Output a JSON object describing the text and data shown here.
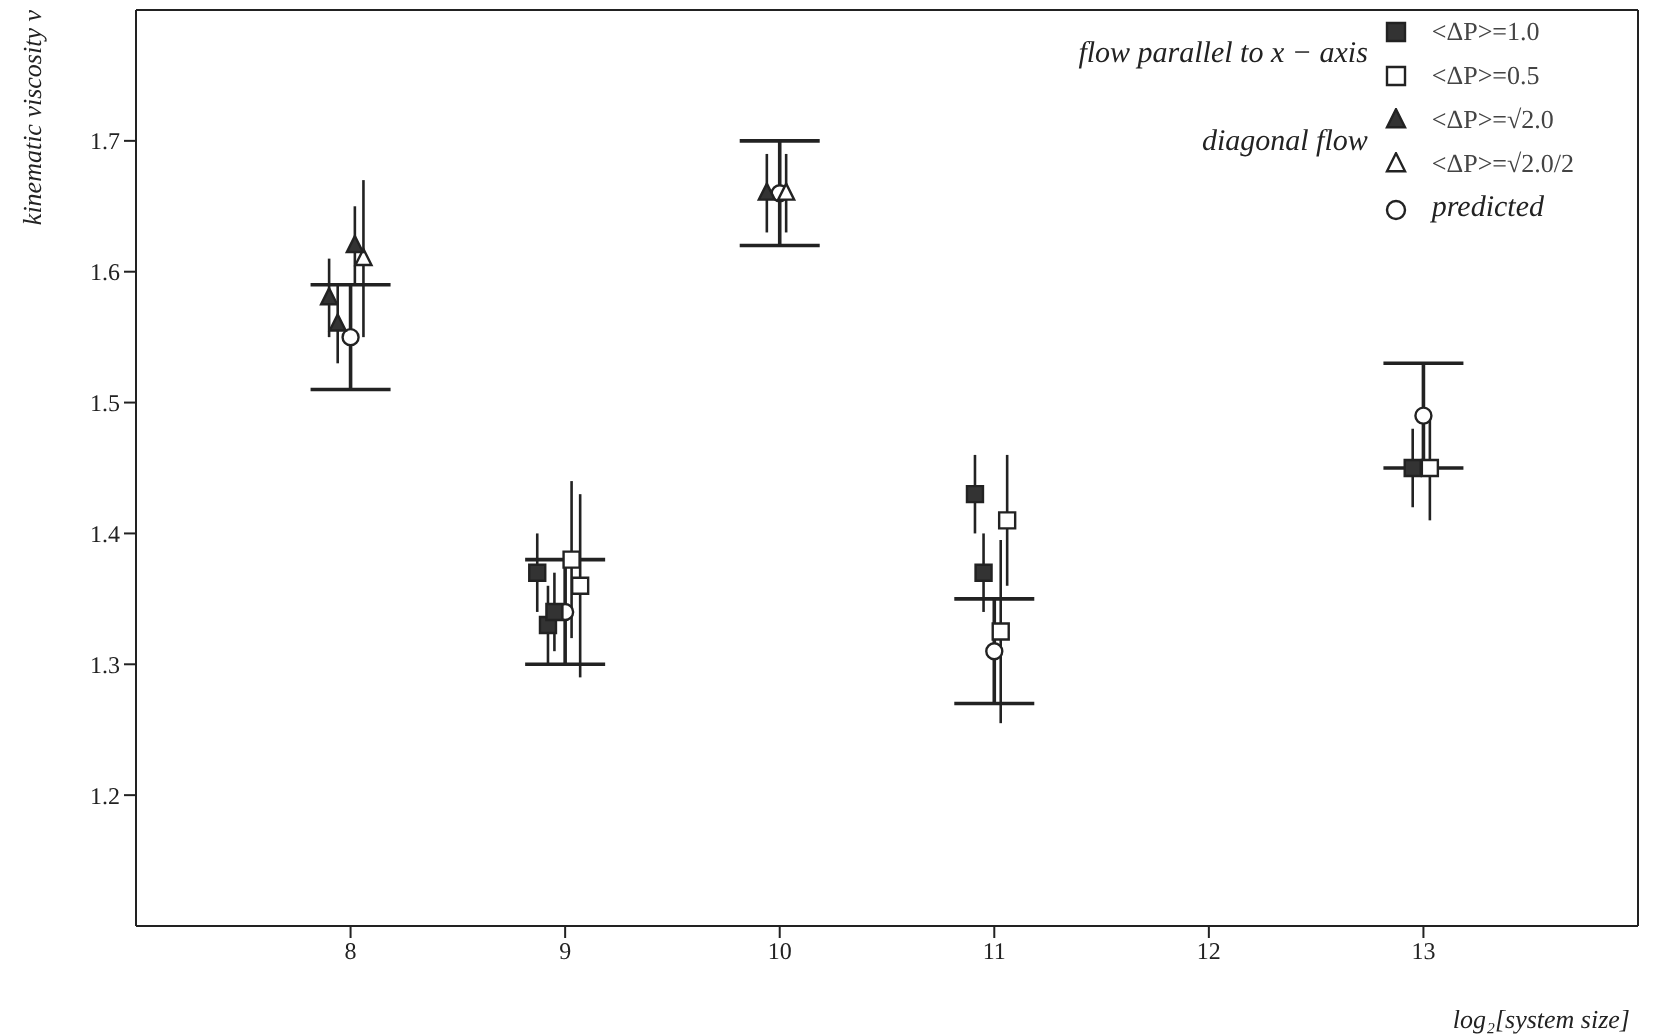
{
  "chart_data": {
    "type": "scatter",
    "xlabel": "log₂[system size]",
    "ylabel": "kinematic viscosity ν",
    "xlim": [
      7,
      14
    ],
    "xticks": [
      8,
      9,
      10,
      11,
      12,
      13
    ],
    "ylim": [
      1.1,
      1.8
    ],
    "yticks": [
      1.2,
      1.3,
      1.4,
      1.5,
      1.6,
      1.7
    ],
    "legend": "top right",
    "annotations": [
      "flow parallel to x − axis",
      "diagonal flow"
    ],
    "series": [
      {
        "name": "<ΔP>=1.0",
        "marker": "square",
        "color": "#333333",
        "x": [
          8.87,
          8.92,
          8.95,
          10.91,
          10.95,
          12.95
        ],
        "values": [
          1.37,
          1.33,
          1.34,
          1.43,
          1.37,
          1.45
        ],
        "errors": [
          0.03,
          0.03,
          0.03,
          0.03,
          0.03,
          0.03
        ]
      },
      {
        "name": "<ΔP>=0.5",
        "marker": "square",
        "color": "#ffffff",
        "x": [
          9.03,
          9.07,
          11.03,
          11.06,
          13.03
        ],
        "values": [
          1.38,
          1.36,
          1.325,
          1.41,
          1.45
        ],
        "errors": [
          0.06,
          0.07,
          0.07,
          0.05,
          0.04
        ]
      },
      {
        "name": "<ΔP>=√2.0",
        "marker": "triangle",
        "color": "#333333",
        "x": [
          7.9,
          7.94,
          8.02,
          9.94
        ],
        "values": [
          1.58,
          1.56,
          1.62,
          1.66
        ],
        "errors": [
          0.03,
          0.03,
          0.03,
          0.03
        ]
      },
      {
        "name": "<ΔP>=√2.0/2",
        "marker": "triangle",
        "color": "#ffffff",
        "x": [
          8.06,
          10.03
        ],
        "values": [
          1.61,
          1.66
        ],
        "errors": [
          0.06,
          0.03
        ]
      },
      {
        "name": "predicted",
        "marker": "circle",
        "color": "#ffffff",
        "x": [
          8,
          9,
          10,
          11,
          13
        ],
        "values": [
          1.55,
          1.34,
          1.66,
          1.31,
          1.49
        ],
        "errors": [
          0.04,
          0.04,
          0.04,
          0.04,
          0.04
        ]
      }
    ]
  }
}
